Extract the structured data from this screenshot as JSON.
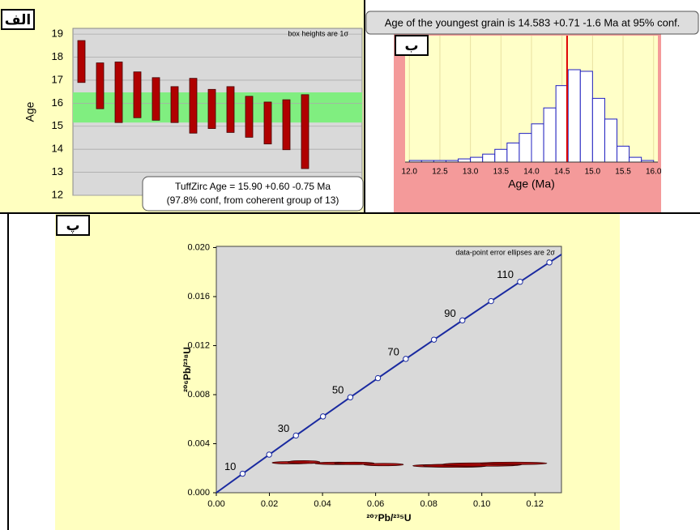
{
  "chart_data": [
    {
      "type": "floating-bar",
      "panel_label": "الف",
      "note": "box heights are 1σ",
      "ylabel": "Age",
      "ylim": [
        12,
        19.25
      ],
      "yticks": [
        12,
        13,
        14,
        15,
        16,
        17,
        18,
        19
      ],
      "low": [
        16.9,
        15.76,
        15.16,
        15.37,
        15.26,
        15.16,
        14.7,
        14.9,
        14.73,
        14.52,
        14.23,
        13.98,
        13.16
      ],
      "high": [
        18.72,
        17.75,
        17.79,
        17.36,
        17.11,
        16.72,
        17.08,
        16.6,
        16.72,
        16.3,
        16.05,
        16.15,
        16.37
      ],
      "color": "#b00000",
      "band": [
        15.16,
        16.47
      ],
      "band_color": "#80ee80",
      "annotation": [
        "TuffZirc Age = 15.90  +0.60  -0.75  Ma",
        "(97.8% conf, from coherent group of 13)"
      ]
    },
    {
      "type": "histogram",
      "panel_label": "ب",
      "title": "Age of the youngest grain is 14.583 +0.71 -1.6 Ma at 95% conf.",
      "xlabel": "Age (Ma)",
      "xlim": [
        11.93,
        16.07
      ],
      "xticks": [
        {
          "value": 12,
          "label": "12.0"
        },
        {
          "value": 12.5,
          "label": "12.5"
        },
        {
          "value": 13,
          "label": "13.0"
        },
        {
          "value": 13.5,
          "label": "13.5"
        },
        {
          "value": 14,
          "label": "14.0"
        },
        {
          "value": 14.5,
          "label": "14.5"
        },
        {
          "value": 15,
          "label": "15.0"
        },
        {
          "value": 15.5,
          "label": "15.5"
        },
        {
          "value": 16,
          "label": "16.0"
        }
      ],
      "bins": [
        12.0,
        12.2,
        12.4,
        12.6,
        12.8,
        13.0,
        13.2,
        13.4,
        13.6,
        13.8,
        14.0,
        14.2,
        14.4,
        14.6,
        14.8,
        15.0,
        15.2,
        15.4,
        15.6,
        15.8,
        16.0
      ],
      "counts": [
        1,
        1,
        1,
        1,
        2,
        3,
        5,
        8,
        12,
        18,
        24,
        34,
        48,
        58,
        57,
        40,
        27,
        10,
        3,
        1
      ],
      "color": "#2020c0",
      "youngest_age": 14.583,
      "marker_color": "#e00000"
    },
    {
      "type": "concordia",
      "panel_label": "پ",
      "note": "data-point error ellipses are 2σ",
      "xlabel": "²⁰⁷Pb/²³⁵U",
      "ylabel": "²⁰⁶Pb/²³⁸U",
      "xlim": [
        0,
        0.13
      ],
      "ylim": [
        0,
        0.0201
      ],
      "xticks": [
        {
          "value": 0,
          "label": "0.00"
        },
        {
          "value": 0.02,
          "label": "0.02"
        },
        {
          "value": 0.04,
          "label": "0.04"
        },
        {
          "value": 0.06,
          "label": "0.06"
        },
        {
          "value": 0.08,
          "label": "0.08"
        },
        {
          "value": 0.1,
          "label": "0.10"
        },
        {
          "value": 0.12,
          "label": "0.12"
        }
      ],
      "yticks": [
        {
          "value": 0,
          "label": "0.000"
        },
        {
          "value": 0.004,
          "label": "0.004"
        },
        {
          "value": 0.008,
          "label": "0.008"
        },
        {
          "value": 0.012,
          "label": "0.012"
        },
        {
          "value": 0.016,
          "label": "0.016"
        },
        {
          "value": 0.02,
          "label": "0.020"
        }
      ],
      "concordia": {
        "x": [
          0.009897,
          0.019892,
          0.029987,
          0.04018,
          0.050475,
          0.060872,
          0.071372,
          0.081975,
          0.092684,
          0.103498,
          0.11442,
          0.12545
        ],
        "y": [
          0.001552,
          0.003107,
          0.004665,
          0.006224,
          0.007786,
          0.009351,
          0.010918,
          0.012487,
          0.014059,
          0.015634,
          0.01721,
          0.018789
        ],
        "ages": [
          10,
          null,
          30,
          null,
          50,
          null,
          70,
          null,
          90,
          null,
          110,
          null
        ],
        "color": "#1a2aa0"
      },
      "ellipses": {
        "x": [
          0.028,
          0.033,
          0.046,
          0.052,
          0.063,
          0.083,
          0.09,
          0.1,
          0.112
        ],
        "y": [
          0.00245,
          0.0025,
          0.0024,
          0.0024,
          0.0023,
          0.0022,
          0.0022,
          0.0023,
          0.0024
        ],
        "x_err": [
          0.007,
          0.006,
          0.009,
          0.0075,
          0.0075,
          0.009,
          0.012,
          0.015,
          0.0125
        ],
        "y_err": [
          0.0001,
          0.00012,
          0.0001,
          0.0001,
          0.0001,
          0.0001,
          0.00013,
          0.00014,
          0.0001
        ],
        "color": "#a00000"
      }
    }
  ]
}
